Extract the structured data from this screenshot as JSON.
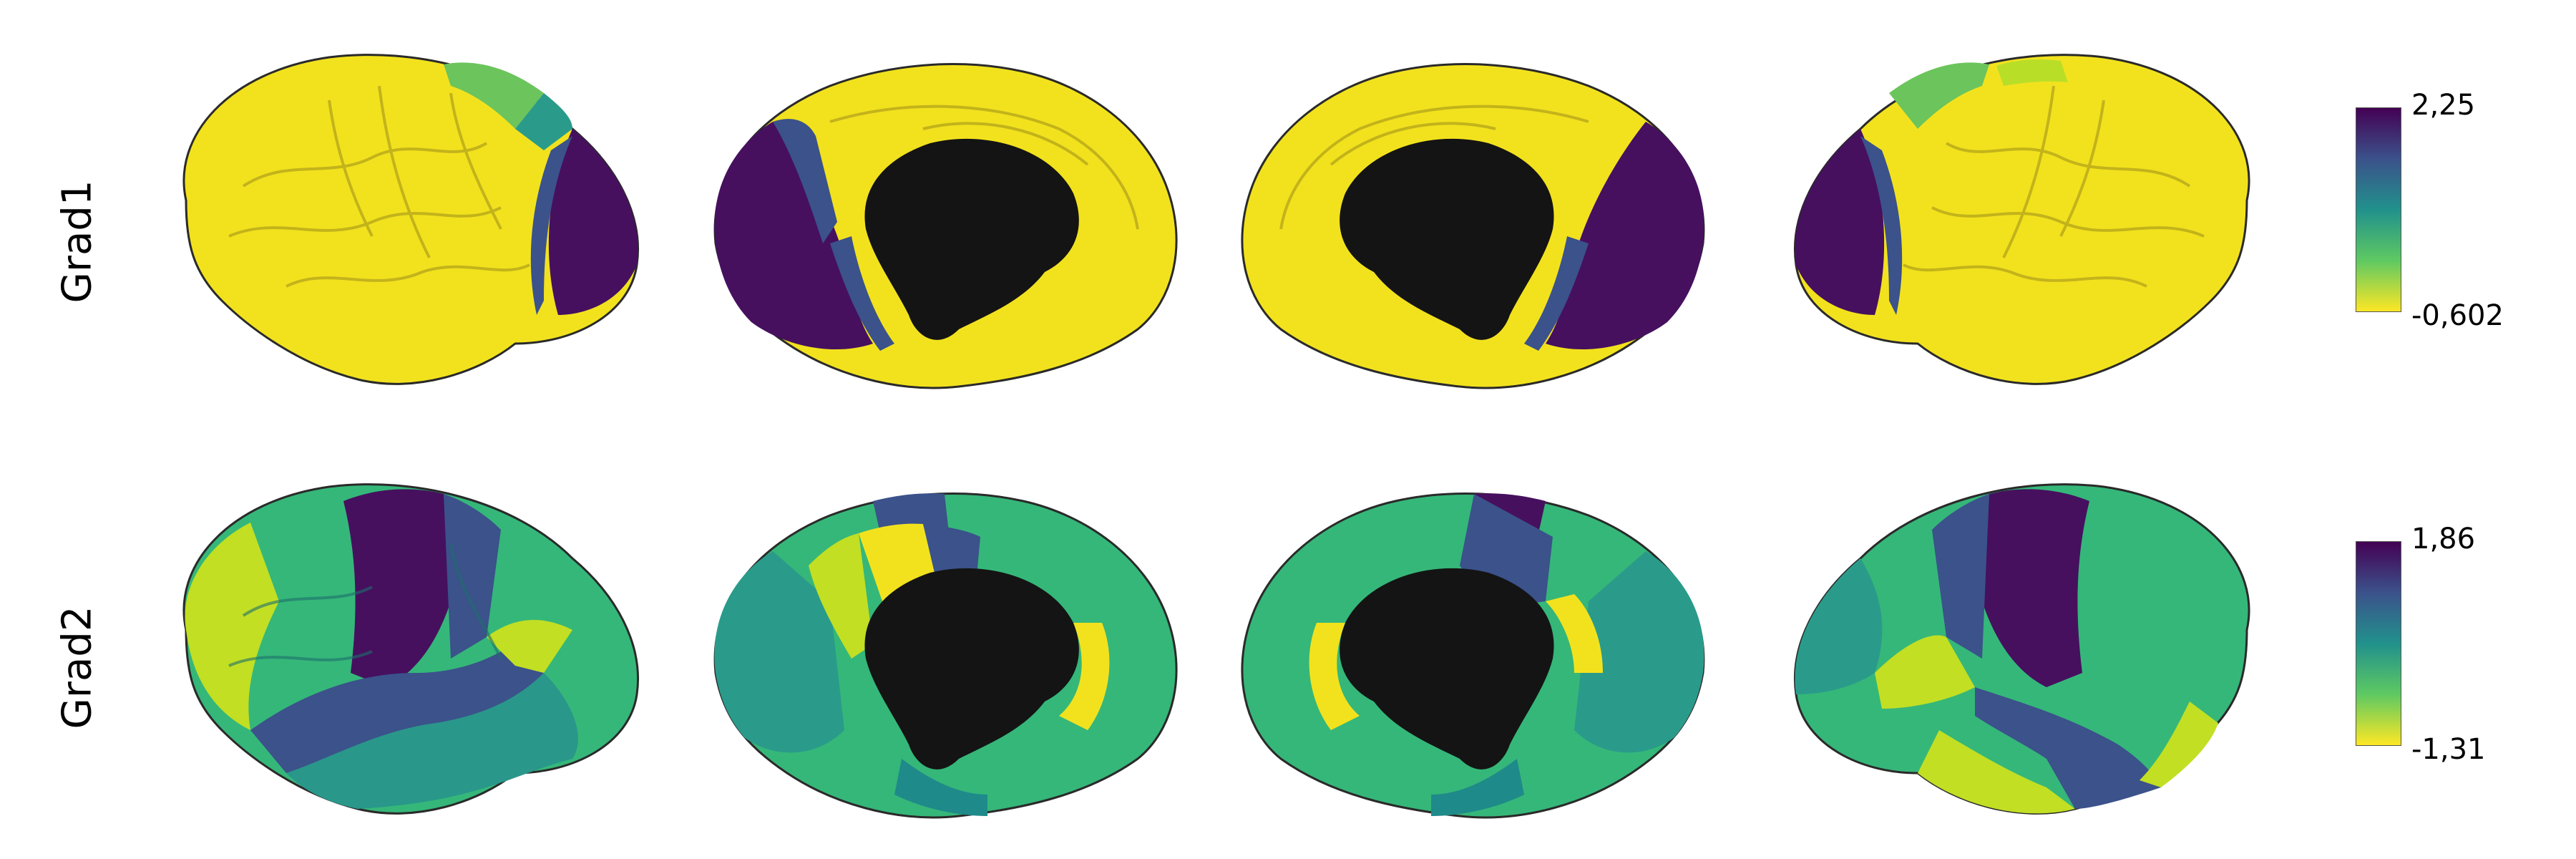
{
  "rows": [
    {
      "label": "Grad1",
      "colorbar": {
        "max": "2,25",
        "min": "-0,602"
      }
    },
    {
      "label": "Grad2",
      "colorbar": {
        "max": "1,86",
        "min": "-1,31"
      }
    }
  ],
  "colormap": "viridis-reversed",
  "colors": {
    "yellow": "#f5e51c",
    "green": "#5ec863",
    "teal": "#21918c",
    "blue": "#3b528b",
    "purple": "#46105f",
    "medial_wall": "#141414"
  }
}
